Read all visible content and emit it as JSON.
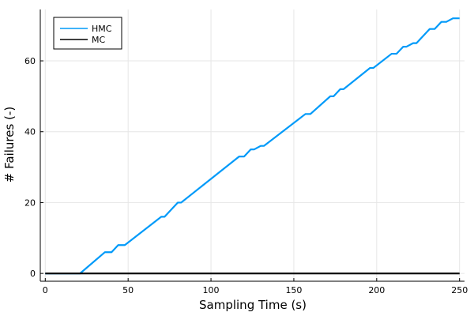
{
  "chart_data": {
    "type": "line",
    "xlabel": "Sampling Time (s)",
    "ylabel": "# Failures (-)",
    "xlim": [
      -3,
      253
    ],
    "ylim": [
      -2.2,
      74.5
    ],
    "xticks": [
      0,
      50,
      100,
      150,
      200,
      250
    ],
    "yticks": [
      0,
      20,
      40,
      60
    ],
    "grid": true,
    "legend_position": "top-left",
    "series": [
      {
        "name": "HMC",
        "color": "#009af9",
        "x": [
          0,
          21,
          36,
          40,
          44,
          48,
          70,
          72,
          80,
          82,
          117,
          120,
          124,
          126,
          130,
          132,
          157,
          160,
          172,
          174,
          178,
          180,
          196,
          198,
          209,
          212,
          216,
          218,
          222,
          224,
          232,
          235,
          239,
          242,
          246,
          248,
          250
        ],
        "y": [
          0,
          0,
          6,
          6,
          8,
          8,
          16,
          16,
          20,
          20,
          33,
          33,
          35,
          35,
          36,
          36,
          45,
          45,
          50,
          50,
          52,
          52,
          58,
          58,
          62,
          62,
          64,
          64,
          65,
          65,
          69,
          69,
          71,
          71,
          72,
          72,
          72
        ]
      },
      {
        "name": "MC",
        "color": "#000000",
        "x": [
          0,
          250
        ],
        "y": [
          0,
          0
        ]
      }
    ]
  }
}
